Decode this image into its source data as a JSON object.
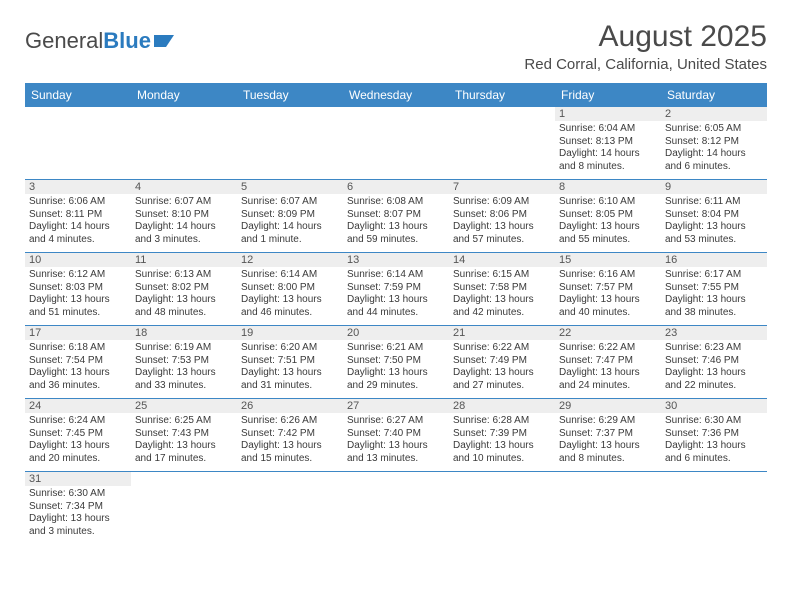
{
  "logo": {
    "word1": "General",
    "word2": "Blue"
  },
  "title": "August 2025",
  "location": "Red Corral, California, United States",
  "colors": {
    "header_bg": "#3d87c5",
    "header_text": "#ffffff",
    "divider": "#3d87c5",
    "daynum_bg": "#eeeeee",
    "text": "#3a3a3a",
    "logo_gray": "#4a4a4a",
    "logo_blue": "#2b7bbf"
  },
  "day_names": [
    "Sunday",
    "Monday",
    "Tuesday",
    "Wednesday",
    "Thursday",
    "Friday",
    "Saturday"
  ],
  "weeks": [
    [
      {
        "n": "",
        "sr": "",
        "ss": "",
        "dl": ""
      },
      {
        "n": "",
        "sr": "",
        "ss": "",
        "dl": ""
      },
      {
        "n": "",
        "sr": "",
        "ss": "",
        "dl": ""
      },
      {
        "n": "",
        "sr": "",
        "ss": "",
        "dl": ""
      },
      {
        "n": "",
        "sr": "",
        "ss": "",
        "dl": ""
      },
      {
        "n": "1",
        "sr": "Sunrise: 6:04 AM",
        "ss": "Sunset: 8:13 PM",
        "dl": "Daylight: 14 hours and 8 minutes."
      },
      {
        "n": "2",
        "sr": "Sunrise: 6:05 AM",
        "ss": "Sunset: 8:12 PM",
        "dl": "Daylight: 14 hours and 6 minutes."
      }
    ],
    [
      {
        "n": "3",
        "sr": "Sunrise: 6:06 AM",
        "ss": "Sunset: 8:11 PM",
        "dl": "Daylight: 14 hours and 4 minutes."
      },
      {
        "n": "4",
        "sr": "Sunrise: 6:07 AM",
        "ss": "Sunset: 8:10 PM",
        "dl": "Daylight: 14 hours and 3 minutes."
      },
      {
        "n": "5",
        "sr": "Sunrise: 6:07 AM",
        "ss": "Sunset: 8:09 PM",
        "dl": "Daylight: 14 hours and 1 minute."
      },
      {
        "n": "6",
        "sr": "Sunrise: 6:08 AM",
        "ss": "Sunset: 8:07 PM",
        "dl": "Daylight: 13 hours and 59 minutes."
      },
      {
        "n": "7",
        "sr": "Sunrise: 6:09 AM",
        "ss": "Sunset: 8:06 PM",
        "dl": "Daylight: 13 hours and 57 minutes."
      },
      {
        "n": "8",
        "sr": "Sunrise: 6:10 AM",
        "ss": "Sunset: 8:05 PM",
        "dl": "Daylight: 13 hours and 55 minutes."
      },
      {
        "n": "9",
        "sr": "Sunrise: 6:11 AM",
        "ss": "Sunset: 8:04 PM",
        "dl": "Daylight: 13 hours and 53 minutes."
      }
    ],
    [
      {
        "n": "10",
        "sr": "Sunrise: 6:12 AM",
        "ss": "Sunset: 8:03 PM",
        "dl": "Daylight: 13 hours and 51 minutes."
      },
      {
        "n": "11",
        "sr": "Sunrise: 6:13 AM",
        "ss": "Sunset: 8:02 PM",
        "dl": "Daylight: 13 hours and 48 minutes."
      },
      {
        "n": "12",
        "sr": "Sunrise: 6:14 AM",
        "ss": "Sunset: 8:00 PM",
        "dl": "Daylight: 13 hours and 46 minutes."
      },
      {
        "n": "13",
        "sr": "Sunrise: 6:14 AM",
        "ss": "Sunset: 7:59 PM",
        "dl": "Daylight: 13 hours and 44 minutes."
      },
      {
        "n": "14",
        "sr": "Sunrise: 6:15 AM",
        "ss": "Sunset: 7:58 PM",
        "dl": "Daylight: 13 hours and 42 minutes."
      },
      {
        "n": "15",
        "sr": "Sunrise: 6:16 AM",
        "ss": "Sunset: 7:57 PM",
        "dl": "Daylight: 13 hours and 40 minutes."
      },
      {
        "n": "16",
        "sr": "Sunrise: 6:17 AM",
        "ss": "Sunset: 7:55 PM",
        "dl": "Daylight: 13 hours and 38 minutes."
      }
    ],
    [
      {
        "n": "17",
        "sr": "Sunrise: 6:18 AM",
        "ss": "Sunset: 7:54 PM",
        "dl": "Daylight: 13 hours and 36 minutes."
      },
      {
        "n": "18",
        "sr": "Sunrise: 6:19 AM",
        "ss": "Sunset: 7:53 PM",
        "dl": "Daylight: 13 hours and 33 minutes."
      },
      {
        "n": "19",
        "sr": "Sunrise: 6:20 AM",
        "ss": "Sunset: 7:51 PM",
        "dl": "Daylight: 13 hours and 31 minutes."
      },
      {
        "n": "20",
        "sr": "Sunrise: 6:21 AM",
        "ss": "Sunset: 7:50 PM",
        "dl": "Daylight: 13 hours and 29 minutes."
      },
      {
        "n": "21",
        "sr": "Sunrise: 6:22 AM",
        "ss": "Sunset: 7:49 PM",
        "dl": "Daylight: 13 hours and 27 minutes."
      },
      {
        "n": "22",
        "sr": "Sunrise: 6:22 AM",
        "ss": "Sunset: 7:47 PM",
        "dl": "Daylight: 13 hours and 24 minutes."
      },
      {
        "n": "23",
        "sr": "Sunrise: 6:23 AM",
        "ss": "Sunset: 7:46 PM",
        "dl": "Daylight: 13 hours and 22 minutes."
      }
    ],
    [
      {
        "n": "24",
        "sr": "Sunrise: 6:24 AM",
        "ss": "Sunset: 7:45 PM",
        "dl": "Daylight: 13 hours and 20 minutes."
      },
      {
        "n": "25",
        "sr": "Sunrise: 6:25 AM",
        "ss": "Sunset: 7:43 PM",
        "dl": "Daylight: 13 hours and 17 minutes."
      },
      {
        "n": "26",
        "sr": "Sunrise: 6:26 AM",
        "ss": "Sunset: 7:42 PM",
        "dl": "Daylight: 13 hours and 15 minutes."
      },
      {
        "n": "27",
        "sr": "Sunrise: 6:27 AM",
        "ss": "Sunset: 7:40 PM",
        "dl": "Daylight: 13 hours and 13 minutes."
      },
      {
        "n": "28",
        "sr": "Sunrise: 6:28 AM",
        "ss": "Sunset: 7:39 PM",
        "dl": "Daylight: 13 hours and 10 minutes."
      },
      {
        "n": "29",
        "sr": "Sunrise: 6:29 AM",
        "ss": "Sunset: 7:37 PM",
        "dl": "Daylight: 13 hours and 8 minutes."
      },
      {
        "n": "30",
        "sr": "Sunrise: 6:30 AM",
        "ss": "Sunset: 7:36 PM",
        "dl": "Daylight: 13 hours and 6 minutes."
      }
    ],
    [
      {
        "n": "31",
        "sr": "Sunrise: 6:30 AM",
        "ss": "Sunset: 7:34 PM",
        "dl": "Daylight: 13 hours and 3 minutes."
      },
      {
        "n": "",
        "sr": "",
        "ss": "",
        "dl": ""
      },
      {
        "n": "",
        "sr": "",
        "ss": "",
        "dl": ""
      },
      {
        "n": "",
        "sr": "",
        "ss": "",
        "dl": ""
      },
      {
        "n": "",
        "sr": "",
        "ss": "",
        "dl": ""
      },
      {
        "n": "",
        "sr": "",
        "ss": "",
        "dl": ""
      },
      {
        "n": "",
        "sr": "",
        "ss": "",
        "dl": ""
      }
    ]
  ]
}
